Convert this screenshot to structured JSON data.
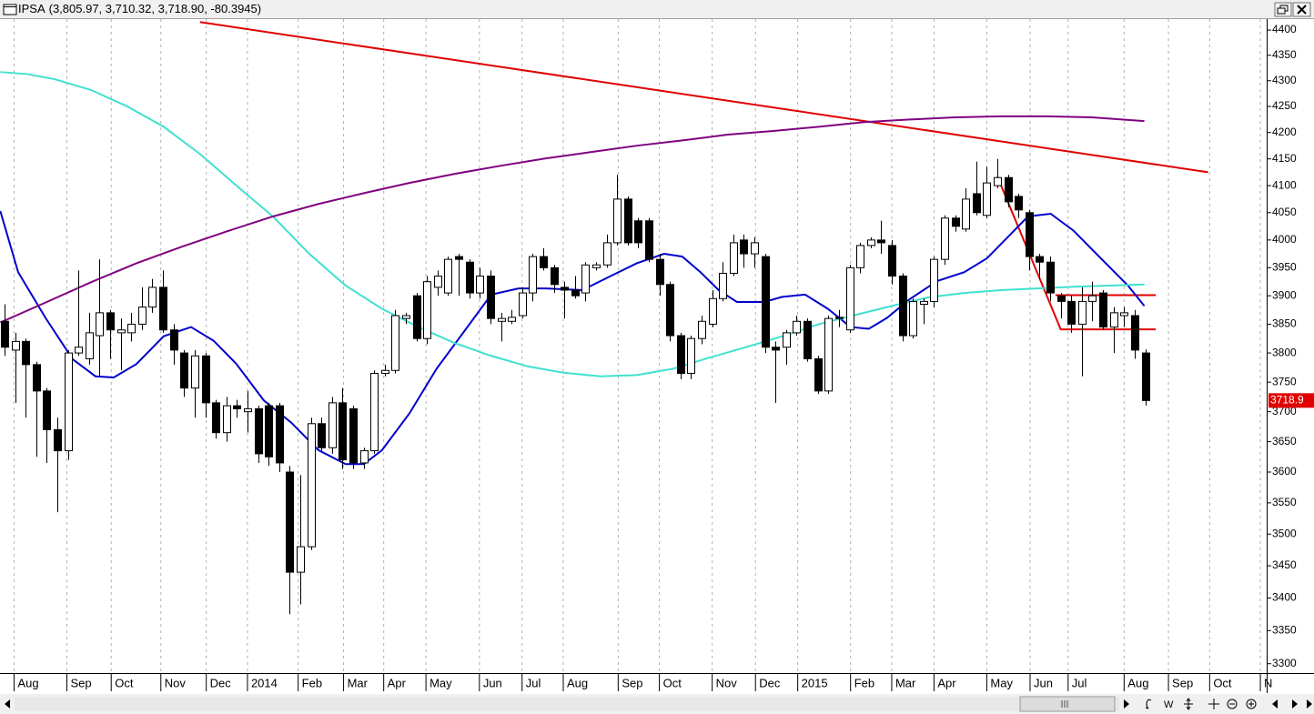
{
  "chart_data": {
    "type": "candlestick",
    "title": "IPSA",
    "subtitle": "(3,805.97, 3,710.32, 3,718.90, -80.3945)",
    "ohlc": [
      [
        3855,
        3885,
        3795,
        3810
      ],
      [
        3805,
        3835,
        3715,
        3820
      ],
      [
        3820,
        3825,
        3690,
        3780
      ],
      [
        3780,
        3785,
        3625,
        3735
      ],
      [
        3735,
        3740,
        3615,
        3670
      ],
      [
        3670,
        3690,
        3535,
        3635
      ],
      [
        3635,
        3805,
        3620,
        3800
      ],
      [
        3800,
        3945,
        3795,
        3810
      ],
      [
        3790,
        3870,
        3780,
        3835
      ],
      [
        3830,
        3965,
        3760,
        3870
      ],
      [
        3870,
        3875,
        3790,
        3840
      ],
      [
        3835,
        3860,
        3770,
        3840
      ],
      [
        3835,
        3870,
        3820,
        3850
      ],
      [
        3850,
        3915,
        3840,
        3880
      ],
      [
        3880,
        3930,
        3870,
        3915
      ],
      [
        3915,
        3945,
        3835,
        3840
      ],
      [
        3840,
        3850,
        3780,
        3805
      ],
      [
        3800,
        3805,
        3725,
        3740
      ],
      [
        3740,
        3805,
        3690,
        3795
      ],
      [
        3795,
        3800,
        3690,
        3715
      ],
      [
        3715,
        3720,
        3655,
        3665
      ],
      [
        3665,
        3725,
        3650,
        3710
      ],
      [
        3710,
        3720,
        3690,
        3705
      ],
      [
        3700,
        3735,
        3665,
        3705
      ],
      [
        3705,
        3710,
        3615,
        3630
      ],
      [
        3710,
        3715,
        3610,
        3625
      ],
      [
        3710,
        3715,
        3600,
        3615
      ],
      [
        3600,
        3610,
        3375,
        3440
      ],
      [
        3440,
        3595,
        3390,
        3480
      ],
      [
        3480,
        3690,
        3475,
        3680
      ],
      [
        3680,
        3690,
        3635,
        3640
      ],
      [
        3640,
        3725,
        3630,
        3715
      ],
      [
        3715,
        3740,
        3605,
        3620
      ],
      [
        3705,
        3710,
        3605,
        3615
      ],
      [
        3615,
        3640,
        3605,
        3635
      ],
      [
        3635,
        3770,
        3630,
        3765
      ],
      [
        3765,
        3780,
        3760,
        3770
      ],
      [
        3770,
        3875,
        3765,
        3865
      ],
      [
        3860,
        3870,
        3850,
        3865
      ],
      [
        3900,
        3905,
        3820,
        3825
      ],
      [
        3825,
        3935,
        3815,
        3925
      ],
      [
        3915,
        3945,
        3900,
        3935
      ],
      [
        3905,
        3970,
        3900,
        3965
      ],
      [
        3970,
        3975,
        3900,
        3965
      ],
      [
        3960,
        3965,
        3895,
        3905
      ],
      [
        3905,
        3950,
        3895,
        3935
      ],
      [
        3935,
        3945,
        3850,
        3860
      ],
      [
        3855,
        3870,
        3820,
        3860
      ],
      [
        3855,
        3875,
        3850,
        3862
      ],
      [
        3865,
        3915,
        3860,
        3905
      ],
      [
        3905,
        3975,
        3890,
        3970
      ],
      [
        3970,
        3985,
        3945,
        3950
      ],
      [
        3950,
        3955,
        3905,
        3920
      ],
      [
        3915,
        3925,
        3860,
        3910
      ],
      [
        3910,
        3935,
        3895,
        3900
      ],
      [
        3905,
        3960,
        3890,
        3955
      ],
      [
        3950,
        3960,
        3945,
        3955
      ],
      [
        3955,
        4010,
        3950,
        3995
      ],
      [
        3995,
        4120,
        3990,
        4075
      ],
      [
        4075,
        4080,
        3990,
        3995
      ],
      [
        4035,
        4040,
        3985,
        3995
      ],
      [
        4035,
        4040,
        3960,
        3965
      ],
      [
        3965,
        3975,
        3900,
        3920
      ],
      [
        3920,
        3925,
        3820,
        3830
      ],
      [
        3830,
        3835,
        3755,
        3765
      ],
      [
        3765,
        3830,
        3755,
        3825
      ],
      [
        3825,
        3865,
        3815,
        3855
      ],
      [
        3850,
        3910,
        3845,
        3895
      ],
      [
        3895,
        3960,
        3890,
        3940
      ],
      [
        3940,
        4010,
        3935,
        3995
      ],
      [
        4000,
        4010,
        3950,
        3975
      ],
      [
        3975,
        4005,
        3950,
        3995
      ],
      [
        3970,
        3975,
        3800,
        3810
      ],
      [
        3810,
        3820,
        3715,
        3805
      ],
      [
        3810,
        3840,
        3780,
        3835
      ],
      [
        3835,
        3865,
        3830,
        3855
      ],
      [
        3855,
        3860,
        3785,
        3790
      ],
      [
        3790,
        3795,
        3730,
        3735
      ],
      [
        3735,
        3865,
        3730,
        3860
      ],
      [
        3862,
        3875,
        3845,
        3860
      ],
      [
        3840,
        3955,
        3835,
        3950
      ],
      [
        3950,
        3995,
        3940,
        3990
      ],
      [
        3990,
        4005,
        3985,
        4000
      ],
      [
        4000,
        4035,
        3975,
        3995
      ],
      [
        3990,
        4000,
        3920,
        3935
      ],
      [
        3935,
        3940,
        3820,
        3830
      ],
      [
        3830,
        3895,
        3825,
        3890
      ],
      [
        3885,
        3895,
        3850,
        3890
      ],
      [
        3890,
        3970,
        3880,
        3965
      ],
      [
        3965,
        4045,
        3955,
        4040
      ],
      [
        4040,
        4045,
        4015,
        4025
      ],
      [
        4020,
        4095,
        4015,
        4075
      ],
      [
        4085,
        4145,
        4045,
        4050
      ],
      [
        4045,
        4135,
        4040,
        4105
      ],
      [
        4100,
        4150,
        4095,
        4115
      ],
      [
        4115,
        4120,
        4060,
        4070
      ],
      [
        4080,
        4085,
        4040,
        4055
      ],
      [
        4050,
        4055,
        3945,
        3970
      ],
      [
        3970,
        3975,
        3930,
        3960
      ],
      [
        3960,
        3970,
        3890,
        3905
      ],
      [
        3900,
        3905,
        3860,
        3890
      ],
      [
        3890,
        3900,
        3835,
        3850
      ],
      [
        3850,
        3915,
        3760,
        3890
      ],
      [
        3890,
        3925,
        3855,
        3900
      ],
      [
        3905,
        3910,
        3840,
        3845
      ],
      [
        3845,
        3880,
        3800,
        3870
      ],
      [
        3865,
        3880,
        3845,
        3870
      ],
      [
        3865,
        3875,
        3790,
        3805
      ],
      [
        3800,
        3805.97,
        3710.32,
        3718.9
      ]
    ],
    "up_color": "#ffffff",
    "down_color": "#000000",
    "xlim": [
      -0.43,
      119.5
    ],
    "xticks": [
      {
        "value": 0.9,
        "label": "Aug"
      },
      {
        "value": 5.9,
        "label": "Sep"
      },
      {
        "value": 10.1,
        "label": "Oct"
      },
      {
        "value": 14.8,
        "label": "Nov"
      },
      {
        "value": 19.1,
        "label": "Dec"
      },
      {
        "value": 23.0,
        "label": "2014"
      },
      {
        "value": 27.8,
        "label": "Feb"
      },
      {
        "value": 32.1,
        "label": "Mar"
      },
      {
        "value": 35.9,
        "label": "Apr"
      },
      {
        "value": 39.9,
        "label": "May"
      },
      {
        "value": 44.96,
        "label": "Jun"
      },
      {
        "value": 49.0,
        "label": "Jul"
      },
      {
        "value": 52.9,
        "label": "Aug"
      },
      {
        "value": 58.1,
        "label": "Sep"
      },
      {
        "value": 62.0,
        "label": "Oct"
      },
      {
        "value": 67.0,
        "label": "Nov"
      },
      {
        "value": 71.1,
        "label": "Dec"
      },
      {
        "value": 75.1,
        "label": "2015"
      },
      {
        "value": 80.1,
        "label": "Feb"
      },
      {
        "value": 84.0,
        "label": "Mar"
      },
      {
        "value": 88.0,
        "label": "Apr"
      },
      {
        "value": 93.0,
        "label": "May"
      },
      {
        "value": 97.1,
        "label": "Jun"
      },
      {
        "value": 100.7,
        "label": "Jul"
      },
      {
        "value": 106.0,
        "label": "Aug"
      },
      {
        "value": 110.2,
        "label": "Sep"
      },
      {
        "value": 114.1,
        "label": "Oct"
      },
      {
        "value": 118.9,
        "label": "N"
      }
    ],
    "ylim": [
      3286,
      4422
    ],
    "yticks": [
      3300,
      3350,
      3400,
      3450,
      3500,
      3550,
      3600,
      3650,
      3700,
      3750,
      3800,
      3850,
      3900,
      3950,
      4000,
      4050,
      4100,
      4150,
      4200,
      4250,
      4300,
      4350,
      4400
    ],
    "log_y": true,
    "grid": true,
    "grid_color": "#b0b0b0",
    "overlays": [
      {
        "color": "#e00000",
        "x": [
          18.5,
          113.95
        ],
        "values": [
          4416,
          4125
        ]
      },
      {
        "color": "#e00000",
        "x": [
          94,
          100,
          109
        ],
        "values": [
          4117,
          3841,
          3841
        ]
      },
      {
        "color": "#e00000",
        "x": [
          99.5,
          109
        ],
        "values": [
          3901,
          3901
        ]
      },
      {
        "color": "#0000cc",
        "x": [
          -0.4,
          1.29,
          3.88,
          6.46,
          8.61,
          10.34,
          12.49,
          15.07,
          17.66,
          19.81,
          21.96,
          24.55,
          27.13,
          29.72,
          32.3,
          34.02,
          35.74,
          38.33,
          40.91,
          43.5,
          46.08,
          48.66,
          51.25,
          54.69,
          57.28,
          59.86,
          62.45,
          64.17,
          65.89,
          67.61,
          69.34,
          71.92,
          73.64,
          75.8,
          77.95,
          80.1,
          81.83,
          83.55,
          85.7,
          88.29,
          90.87,
          93.02,
          95.18,
          96.9,
          99.05,
          101.21,
          103.79,
          106.37,
          107.92
        ],
        "values": [
          4053,
          3942,
          3861,
          3789,
          3760,
          3758,
          3781,
          3829,
          3845,
          3821,
          3781,
          3719,
          3682,
          3636,
          3613,
          3613,
          3636,
          3697,
          3773,
          3837,
          3902,
          3913,
          3913,
          3910,
          3934,
          3958,
          3975,
          3970,
          3942,
          3910,
          3889,
          3889,
          3898,
          3902,
          3877,
          3845,
          3842,
          3861,
          3894,
          3926,
          3942,
          3967,
          4009,
          4043,
          4048,
          4017,
          3967,
          3918,
          3882
        ]
      },
      {
        "color": "#40e0d0",
        "x": [
          -0.4,
          2.15,
          4.74,
          8.18,
          11.63,
          15.07,
          18.52,
          21.96,
          25.41,
          28.85,
          32.3,
          35.74,
          39.19,
          42.64,
          46.08,
          49.53,
          52.97,
          56.42,
          59.86,
          63.31,
          66.75,
          70.2,
          73.64,
          77.09,
          80.53,
          83.98,
          87.42,
          90.87,
          94.32,
          97.76,
          101.21,
          104.65,
          107.92
        ],
        "values": [
          4317,
          4313,
          4303,
          4282,
          4250,
          4211,
          4159,
          4100,
          4043,
          3975,
          3918,
          3877,
          3845,
          3817,
          3795,
          3777,
          3766,
          3760,
          3762,
          3773,
          3792,
          3810,
          3829,
          3850,
          3866,
          3882,
          3897,
          3905,
          3910,
          3913,
          3916,
          3918,
          3920
        ]
      },
      {
        "color": "#800080",
        "x": [
          -0.4,
          3.88,
          8.18,
          12.49,
          16.8,
          21.1,
          25.41,
          29.72,
          34.02,
          38.33,
          42.64,
          46.94,
          51.25,
          55.56,
          59.86,
          64.17,
          68.48,
          72.78,
          77.09,
          81.4,
          85.7,
          90.01,
          94.32,
          98.62,
          102.93,
          107.92
        ],
        "values": [
          3853,
          3888,
          3924,
          3958,
          3988,
          4016,
          4043,
          4066,
          4086,
          4105,
          4122,
          4137,
          4151,
          4163,
          4175,
          4185,
          4196,
          4203,
          4211,
          4220,
          4225,
          4229,
          4231,
          4231,
          4229,
          4222
        ]
      }
    ],
    "last_label": "3718.9",
    "last_label_color": "#e00000"
  },
  "ui": {
    "period": "W"
  }
}
